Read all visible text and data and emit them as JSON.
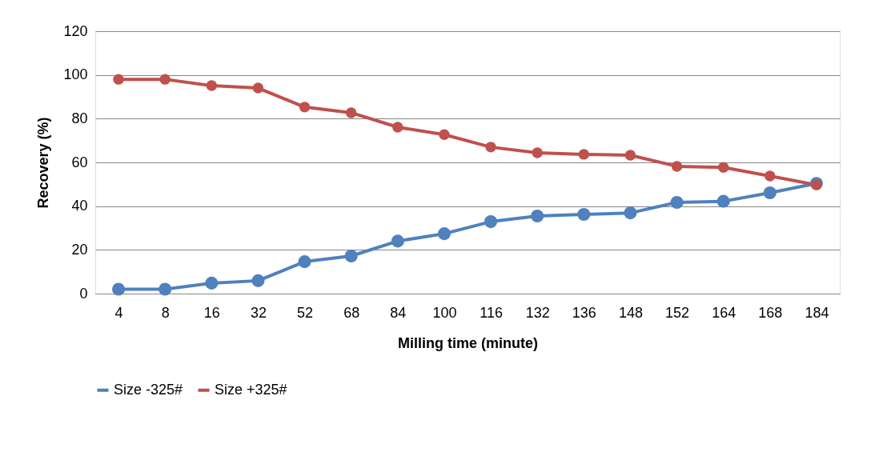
{
  "chart_data": {
    "type": "line",
    "xlabel": "Milling time (minute)",
    "ylabel": "Recovery (%)",
    "categories": [
      "4",
      "8",
      "16",
      "32",
      "52",
      "68",
      "84",
      "100",
      "116",
      "132",
      "136",
      "148",
      "152",
      "164",
      "168",
      "184"
    ],
    "series": [
      {
        "name": "Size -325#",
        "color": "#4f81bd",
        "values": [
          2,
          2,
          4.8,
          5.9,
          14.6,
          17.2,
          24,
          27.4,
          32.9,
          35.5,
          36.2,
          36.9,
          41.7,
          42.2,
          46.1,
          50.4
        ]
      },
      {
        "name": "Size +325#",
        "color": "#c0504d",
        "values": [
          98,
          98,
          95.1,
          94,
          85.3,
          82.7,
          76.1,
          72.7,
          67,
          64.4,
          63.7,
          63.3,
          58.2,
          57.7,
          53.8,
          49.7
        ]
      }
    ],
    "ylim": [
      0,
      120
    ],
    "yticks": [
      0,
      20,
      40,
      60,
      80,
      100,
      120
    ],
    "grid": "y",
    "legend": "bottom",
    "marker": "circle",
    "line_style": "solid"
  }
}
